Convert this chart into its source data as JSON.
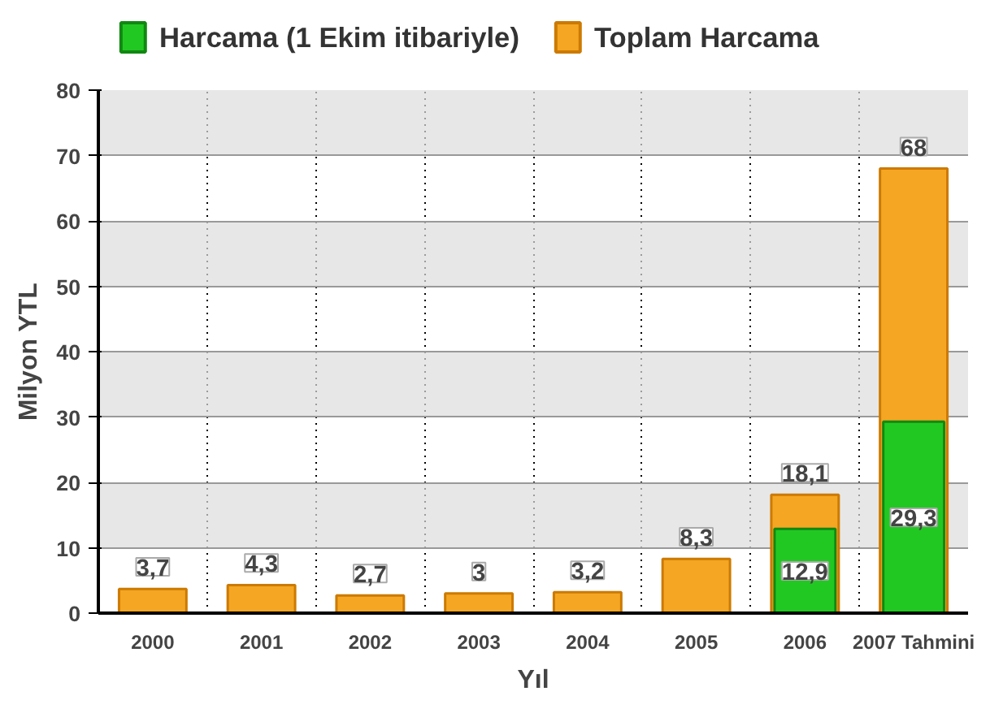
{
  "chart_data": {
    "type": "bar",
    "xlabel": "Yıl",
    "ylabel": "Milyon YTL",
    "categories": [
      "2000",
      "2001",
      "2002",
      "2003",
      "2004",
      "2005",
      "2006",
      "2007 Tahmini"
    ],
    "series": [
      {
        "name": "Toplam Harcama",
        "color": "#f5a623",
        "values": [
          3.7,
          4.3,
          2.7,
          3,
          3.2,
          8.3,
          18.1,
          68
        ],
        "value_labels": [
          "3,7",
          "4,3",
          "2,7",
          "3",
          "3,2",
          "8,3",
          "18,1",
          "68"
        ]
      },
      {
        "name": "Harcama (1 Ekim itibariyle)",
        "color": "#22c822",
        "values": [
          null,
          null,
          null,
          null,
          null,
          null,
          12.9,
          29.3
        ],
        "value_labels": [
          null,
          null,
          null,
          null,
          null,
          null,
          "12,9",
          "29,3"
        ]
      }
    ],
    "ylim": [
      0,
      80
    ],
    "yticks": [
      0,
      10,
      20,
      30,
      40,
      50,
      60,
      70,
      80
    ],
    "grid": true,
    "legend": "top"
  }
}
